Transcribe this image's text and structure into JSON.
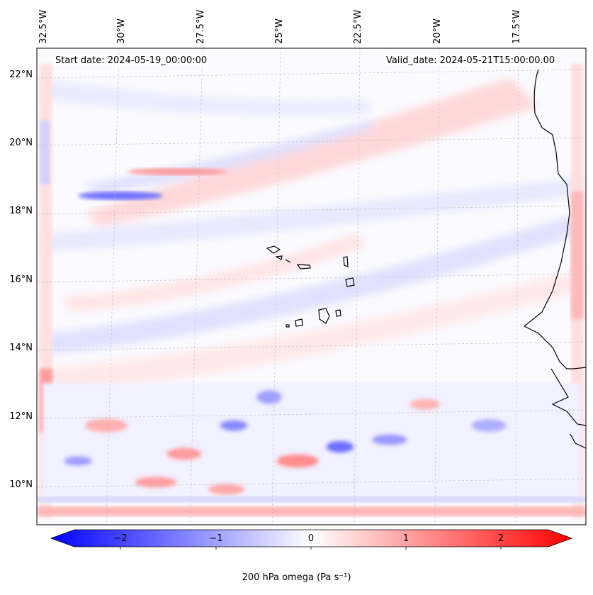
{
  "map": {
    "header_left": "Start date: 2024-05-19_00:00:00",
    "header_right": "Valid_date: 2024-05-21T15:00:00.00",
    "lon_labels": [
      "32.5°W",
      "30°W",
      "27.5°W",
      "25°W",
      "22.5°W",
      "20°W",
      "17.5°W"
    ],
    "lat_labels": [
      "22°N",
      "20°N",
      "18°N",
      "16°N",
      "14°N",
      "12°N",
      "10°N"
    ]
  },
  "colorbar": {
    "ticks": [
      "−2",
      "−1",
      "0",
      "1",
      "2"
    ],
    "min": -2.5,
    "max": 2.5,
    "colormap": "bwr",
    "label": "200 hPa omega (Pa s⁻¹)"
  },
  "colors": {
    "negative": "#0000ff",
    "neutral": "#ffffff",
    "positive": "#ff0000",
    "coastline": "#000000",
    "gridline": "#bdbdbd"
  }
}
